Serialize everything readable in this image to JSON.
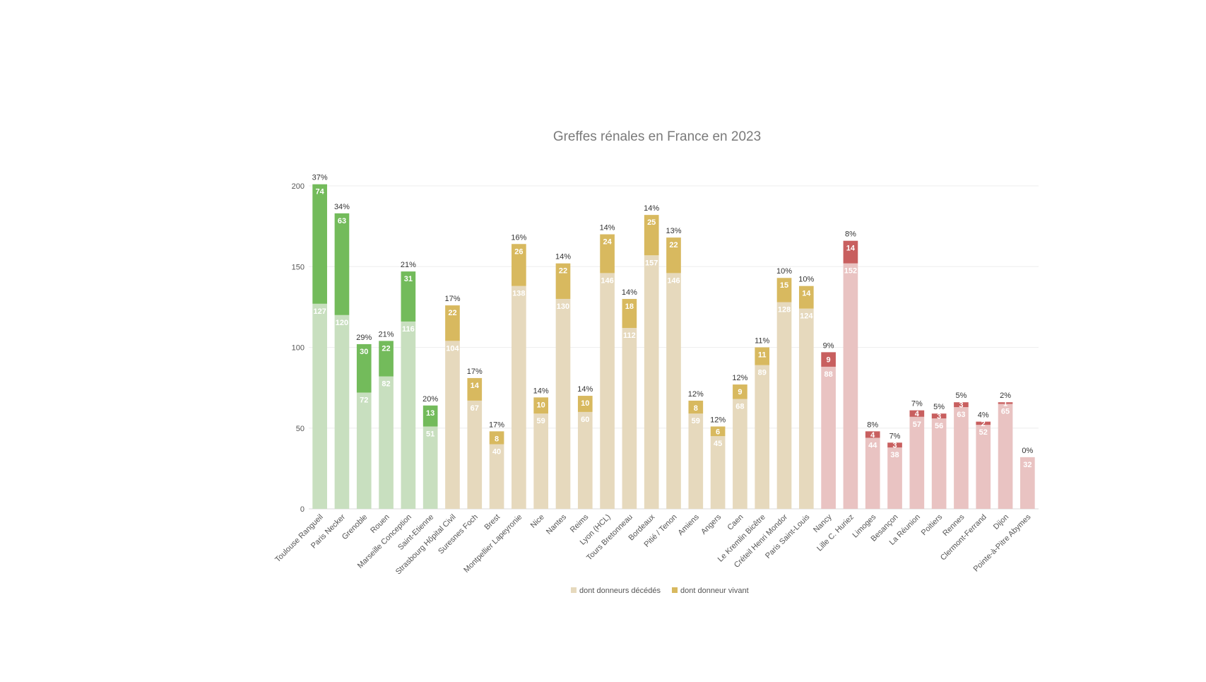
{
  "chart_data": {
    "type": "bar",
    "stacked": true,
    "title": "Greffes rénales en France en 2023",
    "xlabel": "",
    "ylabel": "",
    "ylim": [
      0,
      200
    ],
    "yticks": [
      0,
      50,
      100,
      150,
      200
    ],
    "grid": true,
    "legend_position": "bottom",
    "legend": [
      "dont donneurs décédés",
      "dont donneur vivant"
    ],
    "legend_colors": [
      "#e6d9bd",
      "#d8b95f"
    ],
    "groups": [
      {
        "name": "green",
        "base_color": "#c8dfbf",
        "top_color": "#73bb5b"
      },
      {
        "name": "gold",
        "base_color": "#e6d9bd",
        "top_color": "#d8b95f"
      },
      {
        "name": "red",
        "base_color": "#e9c3c2",
        "top_color": "#c85f5f"
      }
    ],
    "categories": [
      {
        "name": "Toulouse Rangueil",
        "deceased": 127,
        "living": 74,
        "pct": "37%",
        "group": 0
      },
      {
        "name": "Paris Necker",
        "deceased": 120,
        "living": 63,
        "pct": "34%",
        "group": 0
      },
      {
        "name": "Grenoble",
        "deceased": 72,
        "living": 30,
        "pct": "29%",
        "group": 0
      },
      {
        "name": "Rouen",
        "deceased": 82,
        "living": 22,
        "pct": "21%",
        "group": 0
      },
      {
        "name": "Marseille Conception",
        "deceased": 116,
        "living": 31,
        "pct": "21%",
        "group": 0
      },
      {
        "name": "Saint-Etienne",
        "deceased": 51,
        "living": 13,
        "pct": "20%",
        "group": 0
      },
      {
        "name": "Strasbourg Hôpital Civil",
        "deceased": 104,
        "living": 22,
        "pct": "17%",
        "group": 1
      },
      {
        "name": "Suresnes Foch",
        "deceased": 67,
        "living": 14,
        "pct": "17%",
        "group": 1
      },
      {
        "name": "Brest",
        "deceased": 40,
        "living": 8,
        "pct": "17%",
        "group": 1
      },
      {
        "name": "Montpellier Lapeyronie",
        "deceased": 138,
        "living": 26,
        "pct": "16%",
        "group": 1
      },
      {
        "name": "Nice",
        "deceased": 59,
        "living": 10,
        "pct": "14%",
        "group": 1
      },
      {
        "name": "Nantes",
        "deceased": 130,
        "living": 22,
        "pct": "14%",
        "group": 1
      },
      {
        "name": "Reims",
        "deceased": 60,
        "living": 10,
        "pct": "14%",
        "group": 1
      },
      {
        "name": "Lyon (HCL)",
        "deceased": 146,
        "living": 24,
        "pct": "14%",
        "group": 1
      },
      {
        "name": "Tours Bretonneau",
        "deceased": 112,
        "living": 18,
        "pct": "14%",
        "group": 1
      },
      {
        "name": "Bordeaux",
        "deceased": 157,
        "living": 25,
        "pct": "14%",
        "group": 1
      },
      {
        "name": "Pitié / Tenon",
        "deceased": 146,
        "living": 22,
        "pct": "13%",
        "group": 1
      },
      {
        "name": "Amiens",
        "deceased": 59,
        "living": 8,
        "pct": "12%",
        "group": 1
      },
      {
        "name": "Angers",
        "deceased": 45,
        "living": 6,
        "pct": "12%",
        "group": 1
      },
      {
        "name": "Caen",
        "deceased": 68,
        "living": 9,
        "pct": "12%",
        "group": 1
      },
      {
        "name": "Le Kremlin Bicêtre",
        "deceased": 89,
        "living": 11,
        "pct": "11%",
        "group": 1
      },
      {
        "name": "Créteil Henri Mondor",
        "deceased": 128,
        "living": 15,
        "pct": "10%",
        "group": 1
      },
      {
        "name": "Paris Saint-Louis",
        "deceased": 124,
        "living": 14,
        "pct": "10%",
        "group": 1
      },
      {
        "name": "Nancy",
        "deceased": 88,
        "living": 9,
        "pct": "9%",
        "group": 2
      },
      {
        "name": "Lille C. Huriez",
        "deceased": 152,
        "living": 14,
        "pct": "8%",
        "group": 2
      },
      {
        "name": "Limoges",
        "deceased": 44,
        "living": 4,
        "pct": "8%",
        "group": 2
      },
      {
        "name": "Besançon",
        "deceased": 38,
        "living": 3,
        "pct": "7%",
        "group": 2
      },
      {
        "name": "La Réunion",
        "deceased": 57,
        "living": 4,
        "pct": "7%",
        "group": 2
      },
      {
        "name": "Poitiers",
        "deceased": 56,
        "living": 3,
        "pct": "5%",
        "group": 2
      },
      {
        "name": "Rennes",
        "deceased": 63,
        "living": 3,
        "pct": "5%",
        "group": 2
      },
      {
        "name": "Clermont-Ferrand",
        "deceased": 52,
        "living": 2,
        "pct": "4%",
        "group": 2
      },
      {
        "name": "Dijon",
        "deceased": 65,
        "living": 1,
        "pct": "2%",
        "group": 2
      },
      {
        "name": "Pointe-à-Pitre Abymes",
        "deceased": 32,
        "living": 0,
        "pct": "0%",
        "group": 2
      }
    ]
  }
}
